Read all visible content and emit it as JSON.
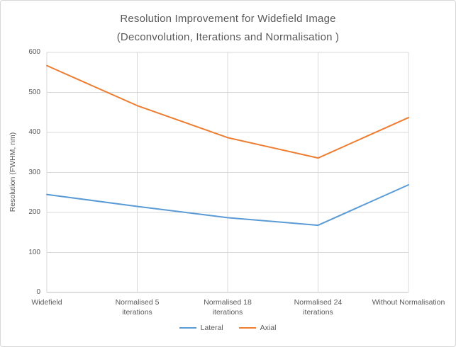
{
  "window": {
    "background": "#ffffff",
    "border_color": "#d7d7d7"
  },
  "chart_data": {
    "type": "line",
    "title": "Resolution Improvement for Widefield Image (Deconvolution, Iterations and Normalisation )",
    "title_lines": [
      "Resolution Improvement for Widefield Image",
      "(Deconvolution, Iterations and Normalisation )"
    ],
    "xlabel": "",
    "ylabel": "Resolution (FWHM, nm)",
    "categories": [
      "Widefield",
      "Normalised 5 iterations",
      "Normalised 18 iterations",
      "Normalised 24 iterations",
      "Without Normalisation"
    ],
    "category_display": [
      "Widefield",
      "Normalised 5\niterations",
      "Normalised 18\niterations",
      "Normalised 24\niterations",
      "Without Normalisation"
    ],
    "series": [
      {
        "name": "Lateral",
        "color": "#5B9BD5",
        "values": [
          245,
          215,
          187,
          168,
          269
        ]
      },
      {
        "name": "Axial",
        "color": "#ED7D31",
        "values": [
          567,
          467,
          387,
          336,
          437
        ]
      }
    ],
    "ylim": [
      0,
      600
    ],
    "yticks": [
      0,
      100,
      200,
      300,
      400,
      500,
      600
    ],
    "grid": true,
    "grid_color": "#d9d9d9",
    "axis_line_color": "#bfbfbf",
    "text_color": "#595959",
    "legend_position": "bottom"
  }
}
